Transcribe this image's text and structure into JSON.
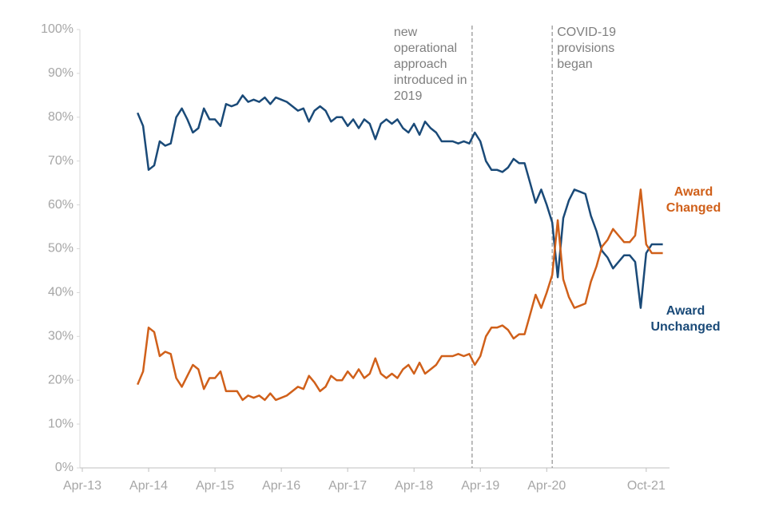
{
  "chart_data": {
    "type": "line",
    "x": [
      10,
      11,
      12,
      13,
      14,
      15,
      16,
      17,
      18,
      19,
      20,
      21,
      22,
      23,
      24,
      25,
      26,
      27,
      28,
      29,
      30,
      31,
      32,
      33,
      34,
      35,
      36,
      37,
      38,
      39,
      40,
      41,
      42,
      43,
      44,
      45,
      46,
      47,
      48,
      49,
      50,
      51,
      52,
      53,
      54,
      55,
      56,
      57,
      58,
      59,
      60,
      61,
      62,
      63,
      64,
      65,
      66,
      67,
      68,
      69,
      70,
      71,
      72,
      73,
      74,
      75,
      76,
      77,
      78,
      79,
      80,
      81,
      82,
      83,
      84,
      85,
      86,
      87,
      88,
      89,
      90,
      91,
      92,
      93,
      94,
      95,
      96,
      97,
      98,
      99,
      100,
      101,
      102,
      103,
      104,
      105
    ],
    "series": [
      {
        "name": "Award Unchanged",
        "color": "#1a4a78",
        "values": [
          81,
          78,
          68,
          69,
          74.5,
          73.5,
          74,
          80,
          82,
          79.5,
          76.5,
          77.5,
          82,
          79.5,
          79.5,
          78,
          83,
          82.5,
          83,
          85,
          83.5,
          84,
          83.5,
          84.5,
          83,
          84.5,
          84,
          83.5,
          82.5,
          81.5,
          82,
          79,
          81.5,
          82.5,
          81.5,
          79,
          80,
          80,
          78,
          79.5,
          77.5,
          79.5,
          78.5,
          75,
          78.5,
          79.5,
          78.5,
          79.5,
          77.5,
          76.5,
          78.5,
          76,
          79,
          77.5,
          76.5,
          74.5,
          74.5,
          74.5,
          74,
          74.5,
          74,
          76.5,
          74.5,
          70,
          68,
          68,
          67.5,
          68.5,
          70.5,
          69.5,
          69.5,
          65,
          60.5,
          63.5,
          60,
          56,
          43.5,
          57,
          61,
          63.5,
          63,
          62.5,
          57.5,
          54,
          49.5,
          48,
          45.5,
          47,
          48.5,
          48.5,
          47,
          36.5,
          49,
          51,
          51,
          51
        ]
      },
      {
        "name": "Award Changed",
        "color": "#d0601a",
        "values": [
          19,
          22,
          32,
          31,
          25.5,
          26.5,
          26,
          20.5,
          18.5,
          21,
          23.5,
          22.5,
          18,
          20.5,
          20.5,
          22,
          17.5,
          17.5,
          17.5,
          15.5,
          16.5,
          16,
          16.5,
          15.5,
          17,
          15.5,
          16,
          16.5,
          17.5,
          18.5,
          18,
          21,
          19.5,
          17.5,
          18.5,
          21,
          20,
          20,
          22,
          20.5,
          22.5,
          20.5,
          21.5,
          25,
          21.5,
          20.5,
          21.5,
          20.5,
          22.5,
          23.5,
          21.5,
          24,
          21.5,
          22.5,
          23.5,
          25.5,
          25.5,
          25.5,
          26,
          25.5,
          26,
          23.5,
          25.5,
          30,
          32,
          32,
          32.5,
          31.5,
          29.5,
          30.5,
          30.5,
          35,
          39.5,
          36.5,
          40,
          44,
          56.5,
          43,
          39,
          36.5,
          37,
          37.5,
          42.5,
          46,
          50.5,
          52,
          54.5,
          53,
          51.5,
          51.5,
          53,
          63.5,
          51,
          49,
          49,
          49
        ]
      }
    ],
    "xlim": [
      0,
      106
    ],
    "xticks": [
      {
        "value": 0,
        "label": "Apr-13"
      },
      {
        "value": 12,
        "label": "Apr-14"
      },
      {
        "value": 24,
        "label": "Apr-15"
      },
      {
        "value": 36,
        "label": "Apr-16"
      },
      {
        "value": 48,
        "label": "Apr-17"
      },
      {
        "value": 60,
        "label": "Apr-18"
      },
      {
        "value": 72,
        "label": "Apr-19"
      },
      {
        "value": 84,
        "label": "Apr-20"
      },
      {
        "value": 102,
        "label": "Oct-21"
      }
    ],
    "ylim": [
      0,
      100
    ],
    "yticks": [
      {
        "value": 0,
        "label": "0%"
      },
      {
        "value": 10,
        "label": "10%"
      },
      {
        "value": 20,
        "label": "20%"
      },
      {
        "value": 30,
        "label": "30%"
      },
      {
        "value": 40,
        "label": "40%"
      },
      {
        "value": 50,
        "label": "50%"
      },
      {
        "value": 60,
        "label": "60%"
      },
      {
        "value": 70,
        "label": "70%"
      },
      {
        "value": 80,
        "label": "80%"
      },
      {
        "value": 90,
        "label": "90%"
      },
      {
        "value": 100,
        "label": "100%"
      }
    ],
    "grid": false,
    "annotations": [
      {
        "x": 70.5,
        "text": "new operational approach introduced in 2019"
      },
      {
        "x": 85,
        "text": "COVID-19 provisions began"
      }
    ]
  }
}
